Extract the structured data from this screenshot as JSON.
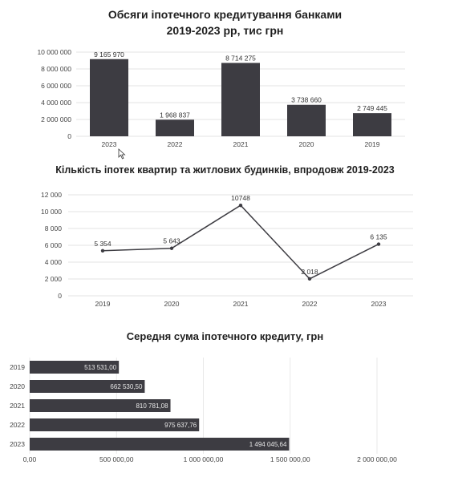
{
  "chart_data": [
    {
      "type": "bar",
      "title": "Обсяги іпотечного кредитування банками",
      "subtitle": "2019-2023 рр, тис грн",
      "categories": [
        "2023",
        "2022",
        "2021",
        "2020",
        "2019"
      ],
      "values": [
        9165970,
        1968837,
        8714275,
        3738660,
        2749445
      ],
      "value_labels": [
        "9 165 970",
        "1 968 837",
        "8 714 275",
        "3 738 660",
        "2 749 445"
      ],
      "yticks": [
        "0",
        "2 000 000",
        "4 000 000",
        "6 000 000",
        "8 000 000",
        "10 000 000"
      ],
      "ylim": [
        0,
        10000000
      ],
      "grid": true,
      "color": "#3d3c42"
    },
    {
      "type": "line",
      "title": "Кількість іпотек квартир та житлових будинків, впродовж 2019-2023",
      "x": [
        "2019",
        "2020",
        "2021",
        "2022",
        "2023"
      ],
      "values": [
        5354,
        5643,
        10748,
        2018,
        6135
      ],
      "value_labels": [
        "5 354",
        "5 643",
        "10748",
        "2 018",
        "6 135"
      ],
      "yticks": [
        "0",
        "2 000",
        "4 000",
        "6 000",
        "8 000",
        "10 000",
        "12 000"
      ],
      "ylim": [
        0,
        12000
      ],
      "grid": true,
      "color": "#3d3c42"
    },
    {
      "type": "bar",
      "orientation": "horizontal",
      "title": "Середня сума іпотечного кредиту, грн",
      "categories": [
        "2019",
        "2020",
        "2021",
        "2022",
        "2023"
      ],
      "values": [
        513531.0,
        662530.5,
        810781.08,
        975637.76,
        1494045.64
      ],
      "value_labels": [
        "513 531,00",
        "662 530,50",
        "810 781,08",
        "975 637,76",
        "1 494 045,64"
      ],
      "xticks": [
        "0,00",
        "500 000,00",
        "1 000 000,00",
        "1 500 000,00",
        "2 000 000,00"
      ],
      "xlim": [
        0,
        2000000
      ],
      "grid": true,
      "color": "#3d3c42"
    }
  ]
}
